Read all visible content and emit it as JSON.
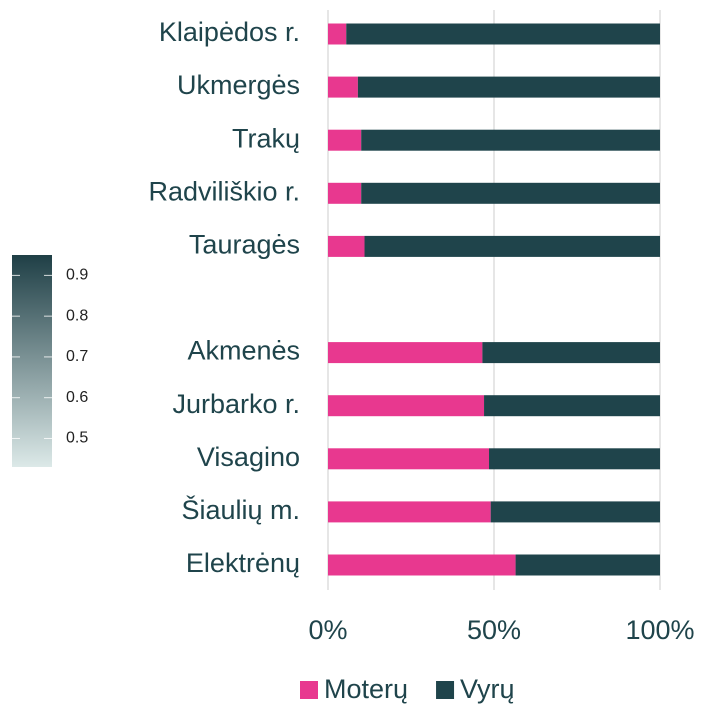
{
  "chart_data": {
    "type": "stacked_barh",
    "categories": [
      "Klaipėdos r.",
      "Ukmergės",
      "Trakų",
      "Radviliškio r.",
      "Tauragės",
      null,
      "Akmenės",
      "Jurbarko r.",
      "Visagino",
      "Šiaulių m.",
      "Elektrėnų"
    ],
    "series": [
      {
        "name": "Moterų",
        "color": "#e8388f",
        "values": [
          5.5,
          9,
          10,
          10,
          11,
          null,
          46.5,
          47,
          48.5,
          49,
          56.5
        ]
      },
      {
        "name": "Vyrų",
        "color": "#1f444b",
        "values": [
          94.5,
          91,
          90,
          90,
          89,
          null,
          53.5,
          53,
          51.5,
          51,
          43.5
        ]
      }
    ],
    "xlim": [
      0,
      100
    ],
    "xticks": [
      {
        "value": 0,
        "label": "0%"
      },
      {
        "value": 50,
        "label": "50%"
      },
      {
        "value": 100,
        "label": "100%"
      }
    ],
    "grid": true,
    "legend": "bottom",
    "colorbar": {
      "lim": [
        0.43,
        0.95
      ],
      "ticks": [
        0.5,
        0.6,
        0.7,
        0.8,
        0.9
      ],
      "colors": [
        "#dce9e8",
        "#1f3f46"
      ]
    }
  }
}
